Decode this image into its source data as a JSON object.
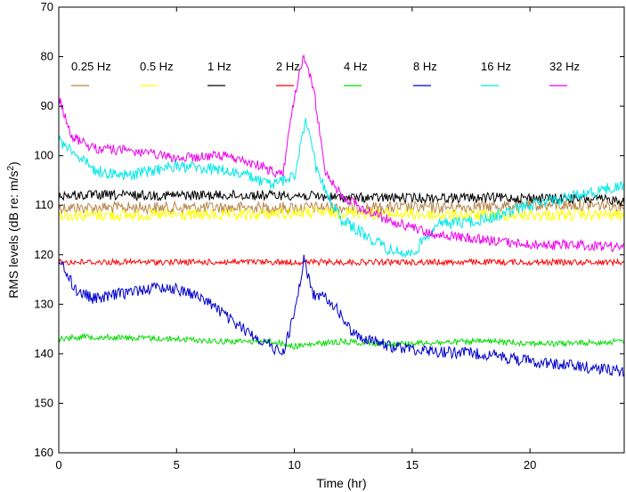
{
  "chart_data": {
    "type": "line",
    "xlabel": "Time (hr)",
    "ylabel": "RMS levels (dB re: m/s²)",
    "ylabel_parts": {
      "main": "RMS levels (dB re: m/s",
      "sup": "2",
      "tail": ")"
    },
    "xlim": [
      0,
      24
    ],
    "ylim": [
      160,
      70
    ],
    "y_inverted": true,
    "grid": false,
    "legend_position": "top",
    "x_ticks": [
      0,
      5,
      10,
      15,
      20
    ],
    "x_tick_labels": [
      "0",
      "5",
      "10",
      "15",
      "20"
    ],
    "y_ticks": [
      70,
      80,
      90,
      100,
      110,
      120,
      130,
      140,
      150,
      160
    ],
    "y_tick_labels": [
      "70",
      "80",
      "90",
      "100",
      "110",
      "120",
      "130",
      "140",
      "150",
      "160"
    ],
    "series": [
      {
        "name": "0.25 Hz",
        "color": "#b8864b",
        "noise": 1.2,
        "points": [
          [
            0,
            110.5
          ],
          [
            4,
            110.5
          ],
          [
            8,
            110.5
          ],
          [
            10,
            110.5
          ],
          [
            12,
            110.5
          ],
          [
            16,
            110.5
          ],
          [
            20,
            110
          ],
          [
            24,
            110
          ]
        ]
      },
      {
        "name": "0.5 Hz",
        "color": "#ffff00",
        "noise": 1.2,
        "points": [
          [
            0,
            112
          ],
          [
            4,
            112
          ],
          [
            8,
            112
          ],
          [
            10,
            111.5
          ],
          [
            12,
            111.5
          ],
          [
            16,
            112
          ],
          [
            20,
            112
          ],
          [
            24,
            112
          ]
        ]
      },
      {
        "name": "1 Hz",
        "color": "#000000",
        "noise": 1.0,
        "points": [
          [
            0,
            108
          ],
          [
            4,
            108
          ],
          [
            8,
            108
          ],
          [
            10,
            108
          ],
          [
            12,
            108.5
          ],
          [
            16,
            108.5
          ],
          [
            20,
            108.5
          ],
          [
            24,
            109
          ]
        ]
      },
      {
        "name": "2 Hz",
        "color": "#ff0000",
        "noise": 0.6,
        "points": [
          [
            0,
            121.5
          ],
          [
            4,
            121.5
          ],
          [
            8,
            121.5
          ],
          [
            10,
            121.5
          ],
          [
            12,
            121.5
          ],
          [
            16,
            121.5
          ],
          [
            20,
            121.5
          ],
          [
            24,
            121.5
          ]
        ]
      },
      {
        "name": "4 Hz",
        "color": "#00dd00",
        "noise": 0.6,
        "points": [
          [
            0,
            137
          ],
          [
            1,
            136.5
          ],
          [
            3,
            136.8
          ],
          [
            5,
            137
          ],
          [
            7,
            137.5
          ],
          [
            9,
            137.5
          ],
          [
            10,
            138.5
          ],
          [
            12,
            137.5
          ],
          [
            14,
            138
          ],
          [
            18,
            137.5
          ],
          [
            21,
            138
          ],
          [
            24,
            137.5
          ]
        ]
      },
      {
        "name": "8 Hz",
        "color": "#0000cc",
        "noise": 1.2,
        "points": [
          [
            0,
            121
          ],
          [
            0.7,
            127
          ],
          [
            1.5,
            129
          ],
          [
            2.5,
            128
          ],
          [
            3.5,
            127
          ],
          [
            4.5,
            126.5
          ],
          [
            5.5,
            127.5
          ],
          [
            6.5,
            130
          ],
          [
            7.5,
            134
          ],
          [
            8.5,
            137
          ],
          [
            9.5,
            140
          ],
          [
            10,
            132
          ],
          [
            10.4,
            121
          ],
          [
            10.8,
            128
          ],
          [
            11.5,
            129
          ],
          [
            12.5,
            136
          ],
          [
            14,
            138.5
          ],
          [
            16,
            139.5
          ],
          [
            18,
            140
          ],
          [
            20,
            141.5
          ],
          [
            22,
            142.5
          ],
          [
            24,
            143.5
          ]
        ]
      },
      {
        "name": "16 Hz",
        "color": "#00e8e8",
        "noise": 1.2,
        "points": [
          [
            0,
            97
          ],
          [
            0.5,
            98.5
          ],
          [
            1.5,
            103
          ],
          [
            3,
            104
          ],
          [
            4,
            103
          ],
          [
            5,
            102
          ],
          [
            6,
            102.5
          ],
          [
            7,
            103
          ],
          [
            8,
            104
          ],
          [
            9,
            106
          ],
          [
            10,
            104
          ],
          [
            10.5,
            93
          ],
          [
            11,
            104
          ],
          [
            12,
            113
          ],
          [
            13,
            116
          ],
          [
            14,
            119
          ],
          [
            15,
            120
          ],
          [
            16,
            114
          ],
          [
            18,
            113
          ],
          [
            20,
            110
          ],
          [
            22,
            108
          ],
          [
            24,
            106
          ]
        ]
      },
      {
        "name": "32 Hz",
        "color": "#ee00ee",
        "noise": 1.0,
        "points": [
          [
            0,
            88
          ],
          [
            0.5,
            96
          ],
          [
            1.5,
            98.5
          ],
          [
            3,
            99
          ],
          [
            5,
            100.5
          ],
          [
            7,
            100
          ],
          [
            8.5,
            102
          ],
          [
            9.5,
            104
          ],
          [
            10,
            88
          ],
          [
            10.4,
            80
          ],
          [
            10.8,
            86
          ],
          [
            11.3,
            103
          ],
          [
            12,
            108
          ],
          [
            13,
            111
          ],
          [
            14,
            113
          ],
          [
            16,
            116
          ],
          [
            18,
            117
          ],
          [
            20,
            118
          ],
          [
            22,
            118
          ],
          [
            24,
            118.5
          ]
        ]
      }
    ]
  }
}
